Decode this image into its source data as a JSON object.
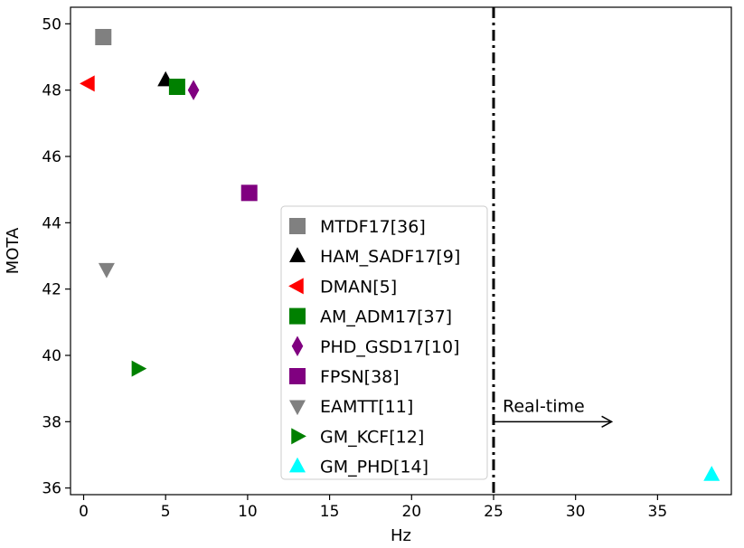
{
  "chart_data": {
    "type": "scatter",
    "title": "",
    "xlabel": "Hz",
    "ylabel": "MOTA",
    "xlim": [
      -0.8,
      39.5
    ],
    "ylim": [
      35.8,
      50.5
    ],
    "xticks": [
      0,
      5,
      10,
      15,
      20,
      25,
      30,
      35
    ],
    "yticks": [
      36,
      38,
      40,
      42,
      44,
      46,
      48,
      50
    ],
    "grid": false,
    "legend_position": "center",
    "series": [
      {
        "name": "MTDF17[36]",
        "marker": "square",
        "color": "#808080",
        "x": 1.2,
        "y": 49.6
      },
      {
        "name": "HAM_SADF17[9]",
        "marker": "triangle-up",
        "color": "#000000",
        "x": 5.0,
        "y": 48.3
      },
      {
        "name": "DMAN[5]",
        "marker": "triangle-left",
        "color": "#ff0000",
        "x": 0.3,
        "y": 48.2
      },
      {
        "name": "AM_ADM17[37]",
        "marker": "square",
        "color": "#008000",
        "x": 5.7,
        "y": 48.1
      },
      {
        "name": "PHD_GSD17[10]",
        "marker": "diamond",
        "color": "#800080",
        "x": 6.7,
        "y": 48.0
      },
      {
        "name": "FPSN[38]",
        "marker": "square",
        "color": "#800080",
        "x": 10.1,
        "y": 44.9
      },
      {
        "name": "EAMTT[11]",
        "marker": "triangle-down",
        "color": "#808080",
        "x": 1.4,
        "y": 42.6
      },
      {
        "name": "GM_KCF[12]",
        "marker": "triangle-right",
        "color": "#008000",
        "x": 3.3,
        "y": 39.6
      },
      {
        "name": "GM_PHD[14]",
        "marker": "triangle-up",
        "color": "#00ffff",
        "x": 38.3,
        "y": 36.4
      }
    ],
    "reference_line": {
      "x": 25,
      "style": "dash-dot",
      "color": "#000000"
    },
    "annotation": {
      "text": "Real-time",
      "arrow_from": [
        25,
        38
      ],
      "arrow_to": [
        32.2,
        38
      ]
    }
  }
}
